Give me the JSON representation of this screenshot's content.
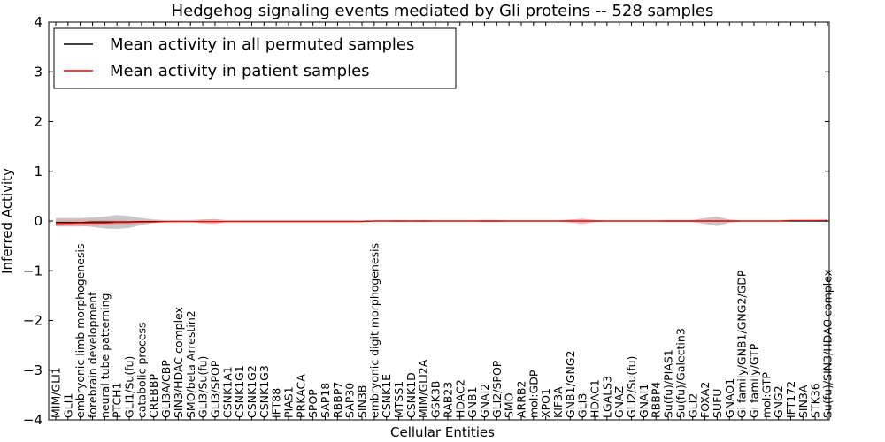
{
  "chart_data": {
    "type": "line",
    "title": "Hedgehog signaling events mediated by Gli proteins -- 528 samples",
    "xlabel": "Cellular Entities",
    "ylabel": "Inferred Activity",
    "ylim": [
      -4,
      4
    ],
    "yticks": [
      -4,
      -3,
      -2,
      -1,
      0,
      1,
      2,
      3,
      4
    ],
    "grid": false,
    "legend_position": "top-left",
    "categories": [
      "MIM/GLI1",
      "GLI1",
      "embryonic limb morphogenesis",
      "forebrain development",
      "neural tube patterning",
      "PTCH1",
      "GLI1/Su(fu)",
      "catabolic process",
      "CREBBP",
      "GLI3A/CBP",
      "SIN3/HDAC complex",
      "SMO/beta Arrestin2",
      "GLI3/Su(fu)",
      "GLI3/SPOP",
      "CSNK1A1",
      "CSNK1G1",
      "CSNK1G2",
      "CSNK1G3",
      "IFT88",
      "PIAS1",
      "PRKACA",
      "SPOP",
      "SAP18",
      "RBBP7",
      "SAP30",
      "SIN3B",
      "embryonic digit morphogenesis",
      "CSNK1E",
      "MTSS1",
      "CSNK1D",
      "MIM/GLI2A",
      "GSK3B",
      "RAB23",
      "HDAC2",
      "GNB1",
      "GNAI2",
      "GLI2/SPOP",
      "SMO",
      "ARRB2",
      "mol:GDP",
      "XPO1",
      "KIF3A",
      "GNB1/GNG2",
      "GLI3",
      "HDAC1",
      "LGALS3",
      "GNAZ",
      "GLI2/Su(fu)",
      "GNAI1",
      "RBBP4",
      "Su(fu)/PIAS1",
      "Su(fu)/Galectin3",
      "GLI2",
      "FOXA2",
      "SUFU",
      "GNAO1",
      "Gi family/GNB1/GNG2/GDP",
      "Gi family/GTP",
      "mol:GTP",
      "GNG2",
      "IFT172",
      "SIN3A",
      "STK36",
      "Su(fu)/SIN3/HDAC complex"
    ],
    "series": [
      {
        "name": "Mean activity in all permuted samples",
        "color": "#000000",
        "values": [
          -0.03,
          -0.03,
          -0.03,
          -0.02,
          -0.02,
          -0.02,
          -0.02,
          -0.01,
          -0.01,
          -0.01,
          -0.01,
          -0.01,
          -0.01,
          -0.01,
          -0.01,
          -0.01,
          -0.01,
          -0.01,
          -0.01,
          -0.01,
          -0.01,
          -0.01,
          -0.01,
          -0.01,
          -0.01,
          -0.01,
          0.0,
          0.0,
          0.0,
          0.0,
          0.0,
          0.0,
          0.0,
          0.0,
          0.0,
          0.0,
          0.0,
          0.0,
          0.0,
          0.0,
          0.0,
          0.0,
          0.0,
          0.0,
          0.0,
          0.0,
          0.0,
          0.0,
          0.0,
          0.0,
          0.0,
          0.0,
          0.0,
          0.0,
          0.0,
          0.0,
          0.0,
          0.0,
          0.0,
          0.0,
          0.0,
          0.0,
          0.0,
          0.0
        ]
      },
      {
        "name": "Mean activity in patient samples",
        "color": "#ff0000",
        "values": [
          -0.05,
          -0.05,
          -0.04,
          -0.04,
          -0.04,
          -0.03,
          -0.03,
          -0.02,
          -0.02,
          -0.01,
          -0.01,
          -0.01,
          -0.01,
          -0.01,
          -0.01,
          -0.01,
          -0.01,
          -0.01,
          -0.01,
          -0.01,
          -0.01,
          -0.01,
          -0.01,
          -0.01,
          -0.01,
          -0.01,
          0.0,
          0.0,
          0.0,
          0.0,
          0.0,
          0.0,
          0.0,
          0.0,
          0.0,
          0.0,
          0.0,
          0.0,
          0.0,
          0.0,
          0.0,
          0.0,
          0.0,
          0.0,
          0.0,
          0.0,
          0.0,
          0.0,
          0.0,
          0.0,
          0.0,
          0.0,
          0.0,
          0.0,
          0.0,
          0.0,
          0.0,
          0.0,
          0.0,
          0.0,
          0.01,
          0.01,
          0.01,
          0.01
        ]
      }
    ],
    "bands": [
      {
        "series": "Mean activity in all permuted samples",
        "color": "#999999",
        "lower": [
          -0.1,
          -0.1,
          -0.1,
          -0.12,
          -0.15,
          -0.16,
          -0.14,
          -0.08,
          -0.04,
          -0.03,
          -0.02,
          -0.02,
          -0.03,
          -0.03,
          -0.02,
          -0.02,
          -0.02,
          -0.02,
          -0.02,
          -0.02,
          -0.02,
          -0.02,
          -0.02,
          -0.02,
          -0.02,
          -0.02,
          -0.01,
          -0.01,
          -0.01,
          -0.01,
          -0.01,
          -0.01,
          -0.01,
          -0.01,
          -0.01,
          -0.01,
          -0.01,
          -0.01,
          -0.01,
          -0.01,
          -0.01,
          -0.01,
          -0.01,
          -0.01,
          -0.01,
          -0.01,
          -0.01,
          -0.01,
          -0.01,
          -0.01,
          -0.01,
          -0.01,
          -0.02,
          -0.06,
          -0.1,
          -0.03,
          -0.01,
          -0.01,
          -0.01,
          -0.01,
          -0.01,
          -0.01,
          -0.01,
          -0.01
        ],
        "upper": [
          0.06,
          0.06,
          0.06,
          0.07,
          0.09,
          0.12,
          0.1,
          0.06,
          0.03,
          0.02,
          0.02,
          0.02,
          0.03,
          0.03,
          0.02,
          0.02,
          0.02,
          0.02,
          0.02,
          0.02,
          0.02,
          0.02,
          0.02,
          0.02,
          0.02,
          0.02,
          0.01,
          0.01,
          0.01,
          0.01,
          0.01,
          0.01,
          0.01,
          0.01,
          0.01,
          0.01,
          0.01,
          0.01,
          0.01,
          0.01,
          0.01,
          0.01,
          0.01,
          0.01,
          0.01,
          0.01,
          0.01,
          0.01,
          0.01,
          0.01,
          0.01,
          0.01,
          0.02,
          0.06,
          0.09,
          0.03,
          0.01,
          0.01,
          0.01,
          0.01,
          0.01,
          0.01,
          0.01,
          0.01
        ]
      },
      {
        "series": "Mean activity in patient samples",
        "color": "#e8a0a0",
        "lower": [
          -0.11,
          -0.11,
          -0.11,
          -0.1,
          -0.09,
          -0.08,
          -0.07,
          -0.05,
          -0.03,
          -0.02,
          -0.02,
          -0.02,
          -0.05,
          -0.06,
          -0.02,
          -0.02,
          -0.02,
          -0.02,
          -0.02,
          -0.02,
          -0.02,
          -0.02,
          -0.02,
          -0.02,
          -0.02,
          -0.02,
          -0.01,
          -0.01,
          -0.02,
          -0.01,
          -0.02,
          -0.01,
          -0.01,
          -0.01,
          -0.01,
          -0.02,
          -0.02,
          -0.01,
          -0.01,
          -0.01,
          -0.01,
          -0.01,
          -0.03,
          -0.06,
          -0.02,
          -0.01,
          -0.01,
          -0.01,
          -0.01,
          -0.01,
          -0.02,
          -0.02,
          -0.02,
          -0.02,
          -0.02,
          -0.02,
          -0.01,
          -0.01,
          -0.01,
          -0.01,
          -0.01,
          -0.01,
          -0.01,
          -0.02
        ],
        "upper": [
          0.02,
          0.02,
          0.02,
          0.02,
          0.02,
          0.02,
          0.01,
          0.01,
          0.01,
          0.01,
          0.01,
          0.01,
          0.03,
          0.04,
          0.01,
          0.01,
          0.01,
          0.01,
          0.01,
          0.01,
          0.01,
          0.01,
          0.01,
          0.01,
          0.01,
          0.01,
          0.01,
          0.01,
          0.02,
          0.01,
          0.02,
          0.01,
          0.01,
          0.01,
          0.01,
          0.02,
          0.02,
          0.01,
          0.01,
          0.01,
          0.01,
          0.01,
          0.03,
          0.05,
          0.02,
          0.01,
          0.01,
          0.01,
          0.01,
          0.01,
          0.02,
          0.02,
          0.02,
          0.02,
          0.02,
          0.02,
          0.01,
          0.01,
          0.01,
          0.01,
          0.02,
          0.02,
          0.02,
          0.03
        ]
      }
    ]
  }
}
